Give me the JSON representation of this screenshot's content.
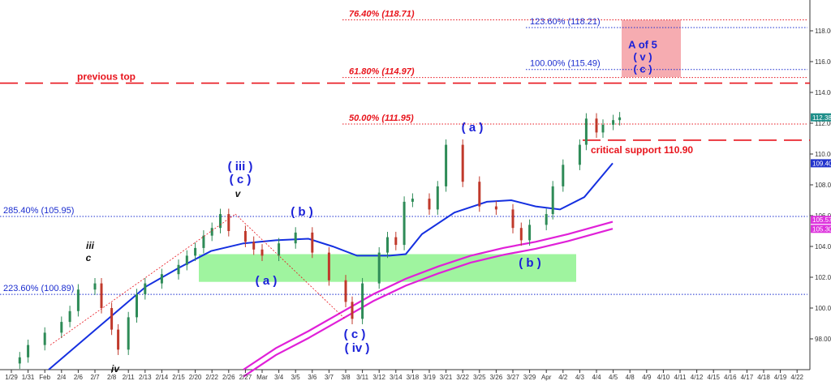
{
  "chart_data": {
    "type": "candlestick",
    "title": "",
    "xlabel": "",
    "ylabel": "",
    "ylim": [
      96.0,
      120.0
    ],
    "y_ticks": [
      "98.00",
      "100.00",
      "102.00",
      "104.00",
      "106.00",
      "108.00",
      "110.00",
      "112.00",
      "114.00",
      "116.00",
      "118.00"
    ],
    "x_ticks": [
      "1/29",
      "1/31",
      "Feb",
      "2/4",
      "2/6",
      "2/7",
      "2/8",
      "2/11",
      "2/13",
      "2/14",
      "2/15",
      "2/20",
      "2/22",
      "2/26",
      "2/27",
      "Mar",
      "3/4",
      "3/5",
      "3/6",
      "3/7",
      "3/8",
      "3/11",
      "3/12",
      "3/14",
      "3/18",
      "3/19",
      "3/21",
      "3/22",
      "3/25",
      "3/26",
      "3/27",
      "3/29",
      "Apr",
      "4/2",
      "4/3",
      "4/4",
      "4/5",
      "4/8",
      "4/9",
      "4/10",
      "4/11",
      "4/12",
      "4/15",
      "4/16",
      "4/17",
      "4/18",
      "4/19",
      "4/22"
    ],
    "price_series": [
      {
        "x": "1/30",
        "y": 96.8
      },
      {
        "x": "1/31",
        "y": 97.6
      },
      {
        "x": "Feb",
        "y": 98.4
      },
      {
        "x": "2/4",
        "y": 99.1
      },
      {
        "x": "2/5",
        "y": 99.8
      },
      {
        "x": "2/6",
        "y": 101.2
      },
      {
        "x": "2/7",
        "y": 101.6
      },
      {
        "x": "2/7",
        "y": 100.0
      },
      {
        "x": "2/8",
        "y": 98.6
      },
      {
        "x": "2/8",
        "y": 97.3
      },
      {
        "x": "2/11",
        "y": 99.4
      },
      {
        "x": "2/12",
        "y": 100.9
      },
      {
        "x": "2/13",
        "y": 101.6
      },
      {
        "x": "2/14",
        "y": 102.2
      },
      {
        "x": "2/15",
        "y": 102.8
      },
      {
        "x": "2/19",
        "y": 103.4
      },
      {
        "x": "2/20",
        "y": 103.9
      },
      {
        "x": "2/21",
        "y": 104.7
      },
      {
        "x": "2/22",
        "y": 105.2
      },
      {
        "x": "2/25",
        "y": 106.1
      },
      {
        "x": "2/26",
        "y": 105.0
      },
      {
        "x": "2/27",
        "y": 104.3
      },
      {
        "x": "2/28",
        "y": 103.8
      },
      {
        "x": "Mar",
        "y": 103.4
      },
      {
        "x": "3/4",
        "y": 104.2
      },
      {
        "x": "3/5",
        "y": 104.9
      },
      {
        "x": "3/6",
        "y": 103.6
      },
      {
        "x": "3/7",
        "y": 101.8
      },
      {
        "x": "3/8",
        "y": 100.4
      },
      {
        "x": "3/8",
        "y": 99.3
      },
      {
        "x": "3/11",
        "y": 101.6
      },
      {
        "x": "3/12",
        "y": 103.6
      },
      {
        "x": "3/13",
        "y": 104.6
      },
      {
        "x": "3/14",
        "y": 104.1
      },
      {
        "x": "3/15",
        "y": 106.9
      },
      {
        "x": "3/18",
        "y": 107.1
      },
      {
        "x": "3/19",
        "y": 106.4
      },
      {
        "x": "3/20",
        "y": 107.9
      },
      {
        "x": "3/21",
        "y": 110.6
      },
      {
        "x": "3/22",
        "y": 108.2
      },
      {
        "x": "3/25",
        "y": 106.6
      },
      {
        "x": "3/26",
        "y": 106.4
      },
      {
        "x": "3/27",
        "y": 105.2
      },
      {
        "x": "3/28",
        "y": 104.4
      },
      {
        "x": "3/29",
        "y": 105.4
      },
      {
        "x": "Apr",
        "y": 106.1
      },
      {
        "x": "Apr",
        "y": 107.9
      },
      {
        "x": "4/2",
        "y": 109.3
      },
      {
        "x": "4/3",
        "y": 110.6
      },
      {
        "x": "4/3",
        "y": 112.3
      },
      {
        "x": "4/4",
        "y": 111.4
      },
      {
        "x": "4/4",
        "y": 111.9
      },
      {
        "x": "4/5",
        "y": 112.2
      },
      {
        "x": "4/5",
        "y": 112.38
      }
    ],
    "last_price": "112.38",
    "ma_blue_last": "109.40",
    "ma_pink_last_a": "105.57",
    "ma_pink_last_b": "105.30",
    "fib_levels": [
      {
        "label": "76.40% (118.71)",
        "value": 118.71,
        "color": "#e8141c"
      },
      {
        "label": "123.60% (118.21)",
        "value": 118.21,
        "color": "#1a2ccf"
      },
      {
        "label": "100.00% (115.49)",
        "value": 115.49,
        "color": "#1a2ccf"
      },
      {
        "label": "61.80% (114.97)",
        "value": 114.97,
        "color": "#e8141c"
      },
      {
        "label": "50.00% (111.95)",
        "value": 111.95,
        "color": "#e8141c"
      },
      {
        "label": "285.40% (105.95)",
        "value": 105.95,
        "color": "#1a2ccf"
      },
      {
        "label": "223.60% (100.89)",
        "value": 100.89,
        "color": "#1a2ccf"
      }
    ],
    "previous_top": {
      "label": "previous top",
      "value": 114.6
    },
    "critical_support": {
      "label": "critical support 110.90",
      "value": 110.9
    },
    "support_zone": {
      "from": 101.7,
      "to": 103.5
    },
    "target_box": {
      "from": 115.0,
      "to": 118.7,
      "lines": [
        "A of 5",
        "( v )",
        "( c )"
      ]
    },
    "wave_labels": [
      {
        "text": "( iii )",
        "color": "blue"
      },
      {
        "text": "( c )",
        "color": "blue"
      },
      {
        "text": "v",
        "color": "black"
      },
      {
        "text": "iii",
        "color": "black"
      },
      {
        "text": "c",
        "color": "black"
      },
      {
        "text": "iv",
        "color": "black"
      },
      {
        "text": "( a )",
        "color": "blue"
      },
      {
        "text": "( b )",
        "color": "blue"
      },
      {
        "text": "( c )",
        "color": "blue"
      },
      {
        "text": "( iv )",
        "color": "blue"
      },
      {
        "text": "( a )",
        "color": "blue"
      },
      {
        "text": "( b )",
        "color": "blue"
      }
    ],
    "colors": {
      "up": "#2e8b57",
      "down": "#c0392b",
      "ma_blue": "#1530e0",
      "ma_pink": "#e020d8",
      "red": "#e8141c",
      "blue": "#1a2ccf",
      "zone": "#7ff07f",
      "target": "#f5a3a8",
      "tag_last": "#1f8f8a",
      "tag_blue": "#2233cc",
      "tag_pink": "#dd33dd"
    }
  }
}
